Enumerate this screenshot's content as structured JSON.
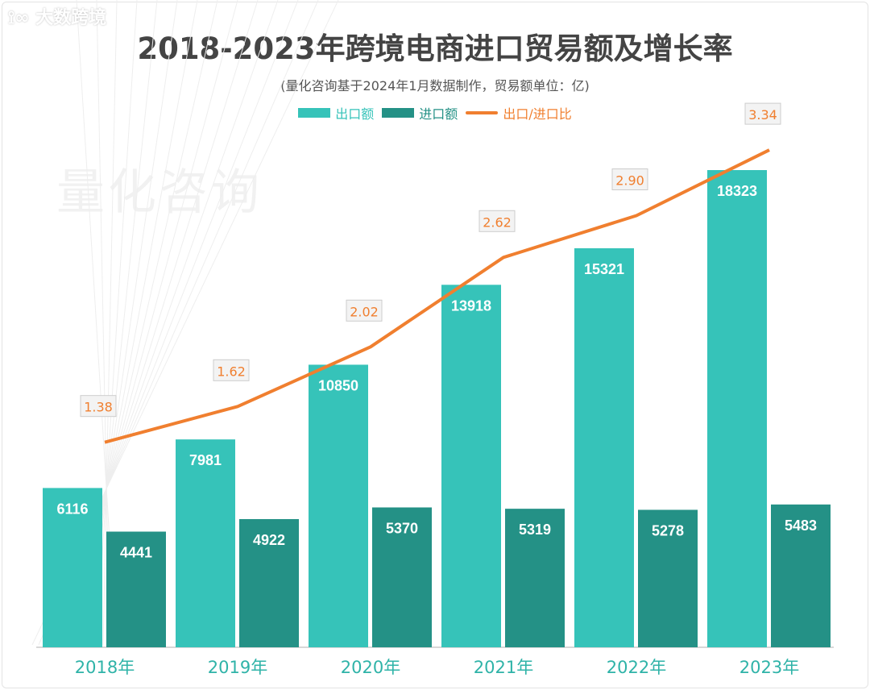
{
  "chart_data": {
    "type": "bar",
    "title": "2018-2023年跨境电商进口贸易额及增长率",
    "subtitle": "(量化咨询基于2024年1月数据制作，贸易额单位：亿)",
    "categories": [
      "2018年",
      "2019年",
      "2020年",
      "2021年",
      "2022年",
      "2023年"
    ],
    "series": [
      {
        "name": "出口额",
        "type": "bar",
        "color": "#36c3b9",
        "values": [
          6116,
          7981,
          10850,
          13918,
          15321,
          18323
        ]
      },
      {
        "name": "进口额",
        "type": "bar",
        "color": "#249186",
        "values": [
          4441,
          4922,
          5370,
          5319,
          5278,
          5483
        ]
      },
      {
        "name": "出口/进口比",
        "type": "line",
        "color": "#f07f2f",
        "values": [
          1.38,
          1.62,
          2.02,
          2.62,
          2.9,
          3.34
        ]
      }
    ],
    "legend_position": "top",
    "grid": false
  },
  "watermark": "量化咨询",
  "logo": "大数跨境"
}
